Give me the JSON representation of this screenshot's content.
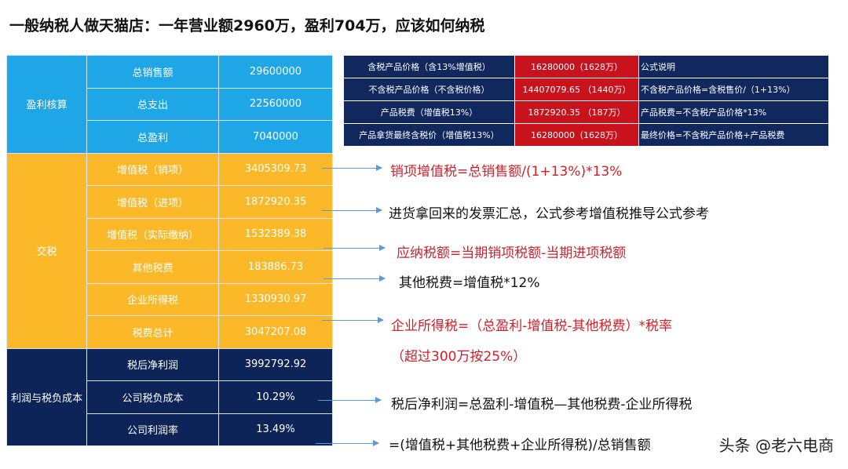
{
  "title": "一般纳税人做天猫店：一年营业额2960万，盈利704万，应该如何纳税",
  "left_table": {
    "groups": [
      {
        "label": "盈利核算",
        "rows": [
          [
            "总销售额",
            "29600000"
          ],
          [
            "总支出",
            "22560000"
          ],
          [
            "总盈利",
            "7040000"
          ]
        ]
      },
      {
        "label": "交税",
        "rows": [
          [
            "增值税（销项）",
            "3405309.73"
          ],
          [
            "增值税（进项）",
            "1872920.35"
          ],
          [
            "增值税（实际缴纳）",
            "1532389.38"
          ],
          [
            "其他税费",
            "183886.73"
          ],
          [
            "企业所得税",
            "1330930.97"
          ],
          [
            "税费总计",
            "3047207.08"
          ]
        ]
      },
      {
        "label": "利润与税负成本",
        "rows": [
          [
            "税后净利润",
            "3992792.92"
          ],
          [
            "公司税负成本",
            "10.29%"
          ],
          [
            "公司利润率",
            "13.49%"
          ]
        ]
      }
    ]
  },
  "right_table": {
    "rows": [
      [
        "含税产品价格（含13%增值税）",
        "16280000（1628万）",
        "公式说明"
      ],
      [
        "不含税产品价格（不含税价格）",
        "14407079.65 （1440万）",
        "不含税产品价格=含税售价/（1+13%）"
      ],
      [
        "产品税费（增值税13%）",
        "1872920.35 （187万）",
        "产品税费=不含税产品价格*13%"
      ],
      [
        "产品拿货最终含税价（增值税13%）",
        "16280000（1628万）",
        "最终价格=不含税产品价格+产品税费"
      ]
    ]
  },
  "notes": [
    "销项增值税=总销售额/(1+13%)*13%",
    "进货拿回来的发票汇总，公式参考增值税推导公式参考",
    "应纳税额=当期销项税额-当期进项税额",
    "其他税费=增值税*12%",
    "企业所得税=（总盈利-增值税-其他税费）*税率",
    "（超过300万按25%）",
    "税后净利润=总盈利-增值税—其他税费-企业所得税",
    "=(增值税+其他税费+企业所得税)/总销售额"
  ],
  "watermark": "头条 @老六电商"
}
